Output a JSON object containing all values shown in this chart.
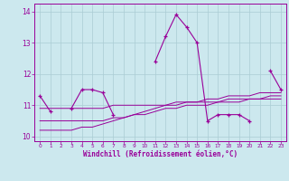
{
  "xlabel": "Windchill (Refroidissement éolien,°C)",
  "hours": [
    0,
    1,
    2,
    3,
    4,
    5,
    6,
    7,
    8,
    9,
    10,
    11,
    12,
    13,
    14,
    15,
    16,
    17,
    18,
    19,
    20,
    21,
    22,
    23
  ],
  "temp": [
    11.3,
    10.8,
    null,
    10.9,
    11.5,
    11.5,
    11.4,
    10.7,
    null,
    null,
    null,
    12.4,
    13.2,
    13.9,
    13.5,
    13.0,
    10.5,
    10.7,
    10.7,
    10.7,
    10.5,
    null,
    12.1,
    11.5
  ],
  "line1": [
    10.2,
    10.2,
    10.2,
    10.2,
    10.3,
    10.3,
    10.4,
    10.5,
    10.6,
    10.7,
    10.8,
    10.9,
    11.0,
    11.0,
    11.1,
    11.1,
    11.2,
    11.2,
    11.3,
    11.3,
    11.3,
    11.4,
    11.4,
    11.4
  ],
  "line2": [
    10.9,
    10.9,
    10.9,
    10.9,
    10.9,
    10.9,
    10.9,
    11.0,
    11.0,
    11.0,
    11.0,
    11.0,
    11.0,
    11.1,
    11.1,
    11.1,
    11.1,
    11.1,
    11.2,
    11.2,
    11.2,
    11.2,
    11.3,
    11.3
  ],
  "line3": [
    10.5,
    10.5,
    10.5,
    10.5,
    10.5,
    10.5,
    10.5,
    10.6,
    10.6,
    10.7,
    10.7,
    10.8,
    10.9,
    10.9,
    11.0,
    11.0,
    11.0,
    11.1,
    11.1,
    11.1,
    11.2,
    11.2,
    11.2,
    11.2
  ],
  "main_color": "#990099",
  "bg_color": "#cce8ee",
  "grid_color": "#aaccd4",
  "ylim": [
    9.85,
    14.25
  ],
  "yticks": [
    10,
    11,
    12,
    13,
    14
  ],
  "xlim": [
    -0.5,
    23.5
  ]
}
